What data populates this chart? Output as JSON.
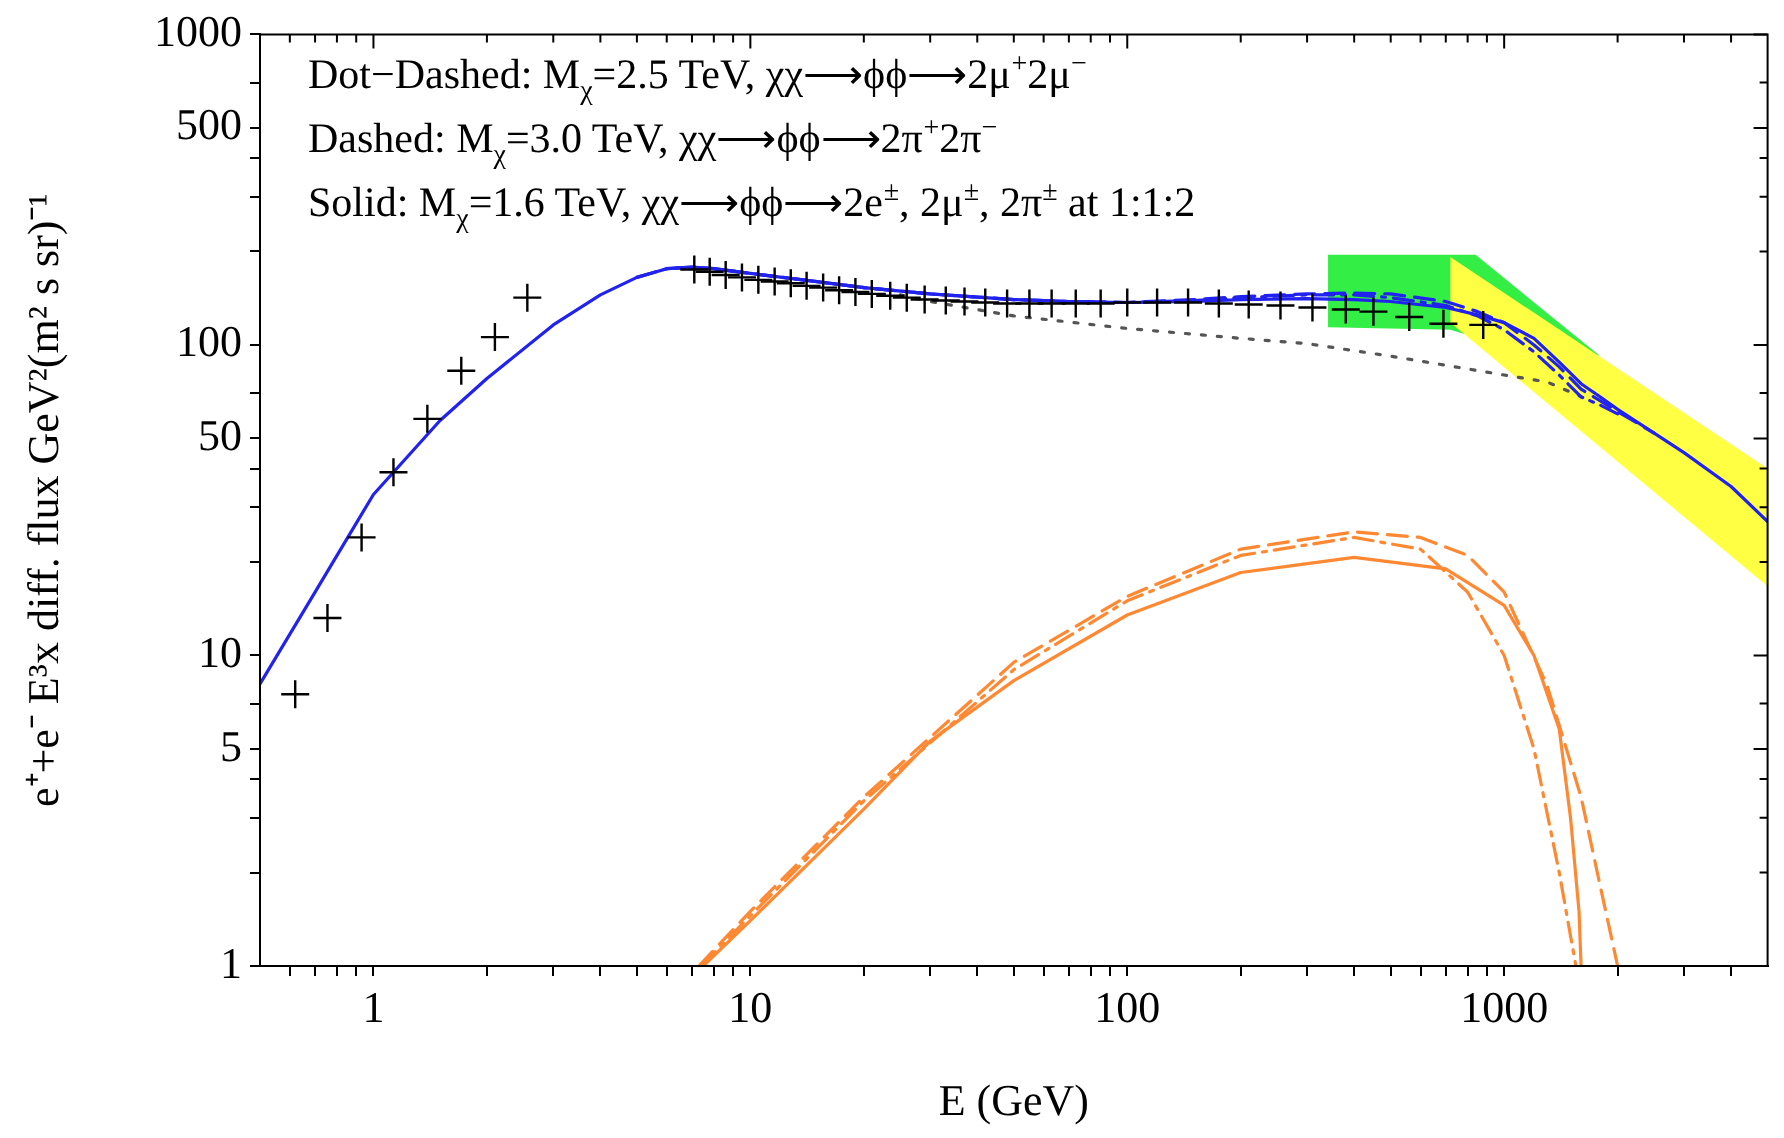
{
  "chart_data": {
    "type": "line",
    "xlabel": "E (GeV)",
    "ylabel": "e⁺+e⁻ E³x diff. flux GeV²(m² s sr)⁻¹",
    "log": "xy",
    "xlim": [
      0.5,
      5000
    ],
    "ylim": [
      1,
      1000
    ],
    "xticks": [
      {
        "value": 0.6,
        "label": null
      },
      {
        "value": 0.7,
        "label": null
      },
      {
        "value": 0.8,
        "label": null
      },
      {
        "value": 0.9,
        "label": null
      },
      1,
      {
        "value": 2,
        "label": null
      },
      {
        "value": 3,
        "label": null
      },
      {
        "value": 4,
        "label": null
      },
      {
        "value": 5,
        "label": null
      },
      {
        "value": 6,
        "label": null
      },
      {
        "value": 7,
        "label": null
      },
      {
        "value": 8,
        "label": null
      },
      {
        "value": 9,
        "label": null
      },
      10,
      {
        "value": 20,
        "label": null
      },
      {
        "value": 30,
        "label": null
      },
      {
        "value": 40,
        "label": null
      },
      {
        "value": 50,
        "label": null
      },
      {
        "value": 60,
        "label": null
      },
      {
        "value": 70,
        "label": null
      },
      {
        "value": 80,
        "label": null
      },
      {
        "value": 90,
        "label": null
      },
      100,
      {
        "value": 200,
        "label": null
      },
      {
        "value": 300,
        "label": null
      },
      {
        "value": 400,
        "label": null
      },
      {
        "value": 500,
        "label": null
      },
      {
        "value": 600,
        "label": null
      },
      {
        "value": 700,
        "label": null
      },
      {
        "value": 800,
        "label": null
      },
      {
        "value": 900,
        "label": null
      },
      1000,
      {
        "value": 2000,
        "label": null
      },
      {
        "value": 3000,
        "label": null
      },
      {
        "value": 4000,
        "label": null
      }
    ],
    "yticks": [
      1,
      {
        "value": 2,
        "label": null
      },
      {
        "value": 3,
        "label": null
      },
      {
        "value": 4,
        "label": null
      },
      5,
      {
        "value": 7,
        "label": null
      },
      10,
      {
        "value": 20,
        "label": null
      },
      {
        "value": 30,
        "label": null
      },
      {
        "value": 40,
        "label": null
      },
      50,
      {
        "value": 70,
        "label": null
      },
      100,
      {
        "value": 200,
        "label": null
      },
      {
        "value": 300,
        "label": null
      },
      {
        "value": 400,
        "label": null
      },
      500,
      {
        "value": 700,
        "label": null
      },
      1000
    ],
    "annotations": [
      "Dot−Dashed: M$_{χ}$=2.5 TeV, χχ⟶ϕϕ⟶2μ$^{+}$2μ$^{−}$",
      "Dashed: M$_{χ}$=3.0 TeV, χχ⟶ϕϕ⟶2π$^{+}$2π$^{−}$",
      "Solid: M$_{χ}$=1.6 TeV, χχ⟶ϕϕ⟶2e$^{±}$, 2μ$^{±}$, 2π$^{±}$ at 1:1:2"
    ],
    "series": [
      {
        "color": "#555555",
        "line_style": "dotted",
        "x": [
          25,
          30,
          50,
          100,
          200,
          300,
          500,
          700,
          1000,
          1300,
          1700
        ],
        "values": [
          145,
          138,
          124,
          113,
          105,
          101,
          92,
          86,
          80,
          76,
          66
        ]
      },
      {
        "color": "#2222ee",
        "line_style": "solid",
        "x": [
          0.5,
          0.7,
          1,
          1.5,
          2,
          3,
          4,
          5,
          6,
          7,
          8,
          10,
          15,
          20,
          30,
          50,
          70,
          100,
          150,
          200,
          300,
          400,
          500,
          700,
          850,
          1000,
          1200,
          1400,
          1600,
          1800,
          2000,
          2500,
          3000,
          4000,
          5000
        ],
        "values": [
          8.1,
          16,
          33,
          57,
          78,
          116,
          145,
          165,
          176,
          178,
          176,
          170,
          160,
          153,
          146,
          140,
          138,
          137,
          138,
          140,
          141,
          140,
          138,
          132,
          125,
          118,
          105,
          88,
          75,
          68,
          62,
          52,
          45,
          35,
          27
        ]
      },
      {
        "color": "#2222ee",
        "line_style": "dashed",
        "x": [
          6,
          7,
          8,
          10,
          15,
          20,
          30,
          50,
          70,
          100,
          150,
          200,
          300,
          400,
          500,
          700,
          850,
          1000,
          1200,
          1400,
          1600,
          1800,
          2000,
          2500
        ],
        "values": [
          176,
          178,
          176,
          170,
          160,
          153,
          146,
          140,
          138,
          137,
          140,
          143,
          146,
          147,
          146,
          138,
          128,
          118,
          100,
          85,
          72,
          66,
          61,
          52
        ]
      },
      {
        "color": "#2222ee",
        "line_style": "dashdot",
        "x": [
          5,
          6,
          7,
          8,
          10,
          15,
          20,
          30,
          50,
          70,
          100,
          150,
          200,
          300,
          400,
          500,
          700,
          850,
          1000,
          1200,
          1400,
          1600,
          1800,
          2000
        ],
        "values": [
          165,
          176,
          178,
          176,
          170,
          160,
          153,
          146,
          140,
          138,
          137,
          139,
          142,
          145,
          145,
          142,
          134,
          124,
          112,
          95,
          80,
          68,
          64,
          60
        ]
      },
      {
        "color": "#ff8833",
        "line_style": "solid",
        "x": [
          7.5,
          10,
          20,
          30,
          50,
          100,
          200,
          400,
          700,
          1000,
          1200,
          1400,
          1500,
          1580,
          1600
        ],
        "values": [
          1,
          1.4,
          3.2,
          5.3,
          8.3,
          13.5,
          18.5,
          20.7,
          19,
          14.5,
          10,
          5.8,
          3,
          1.5,
          1
        ]
      },
      {
        "color": "#ff8833",
        "line_style": "dashed",
        "x": [
          7.3,
          10,
          20,
          50,
          100,
          200,
          400,
          600,
          800,
          1000,
          1300,
          1600,
          1800,
          2000
        ],
        "values": [
          1,
          1.5,
          3.5,
          9.5,
          15.5,
          22,
          25,
          24,
          21,
          16,
          8,
          3.5,
          1.8,
          1
        ]
      },
      {
        "color": "#ff8833",
        "line_style": "dashdot",
        "x": [
          7.4,
          10,
          20,
          50,
          100,
          200,
          400,
          600,
          800,
          1000,
          1200,
          1400,
          1550
        ],
        "values": [
          1,
          1.45,
          3.4,
          9,
          15,
          21,
          24,
          22,
          16,
          10,
          5,
          2,
          1
        ]
      },
      {
        "type": "scatter",
        "marker": "cross",
        "color": "#000000",
        "x": [
          0.62,
          0.755,
          0.93,
          1.13,
          1.39,
          1.71,
          2.1,
          2.56,
          7.1,
          7.8,
          8.6,
          9.5,
          10.5,
          11.6,
          12.8,
          14.1,
          15.6,
          17.2,
          19,
          21,
          23.5,
          26,
          29,
          33,
          37,
          42,
          48,
          55,
          63,
          73,
          85,
          100,
          120,
          145,
          175,
          210,
          255,
          310,
          380,
          450,
          560,
          690,
          880
        ],
        "values": [
          7.5,
          13.2,
          24,
          38.9,
          57.8,
          82.6,
          106,
          142,
          175,
          172,
          168,
          165,
          162,
          160,
          158,
          155,
          153,
          150,
          148,
          146,
          144,
          142,
          140,
          139,
          138,
          137,
          136,
          136,
          136,
          136,
          136,
          137,
          137,
          137,
          136,
          135,
          134,
          132,
          130,
          128,
          123,
          117,
          116
        ]
      }
    ]
  }
}
